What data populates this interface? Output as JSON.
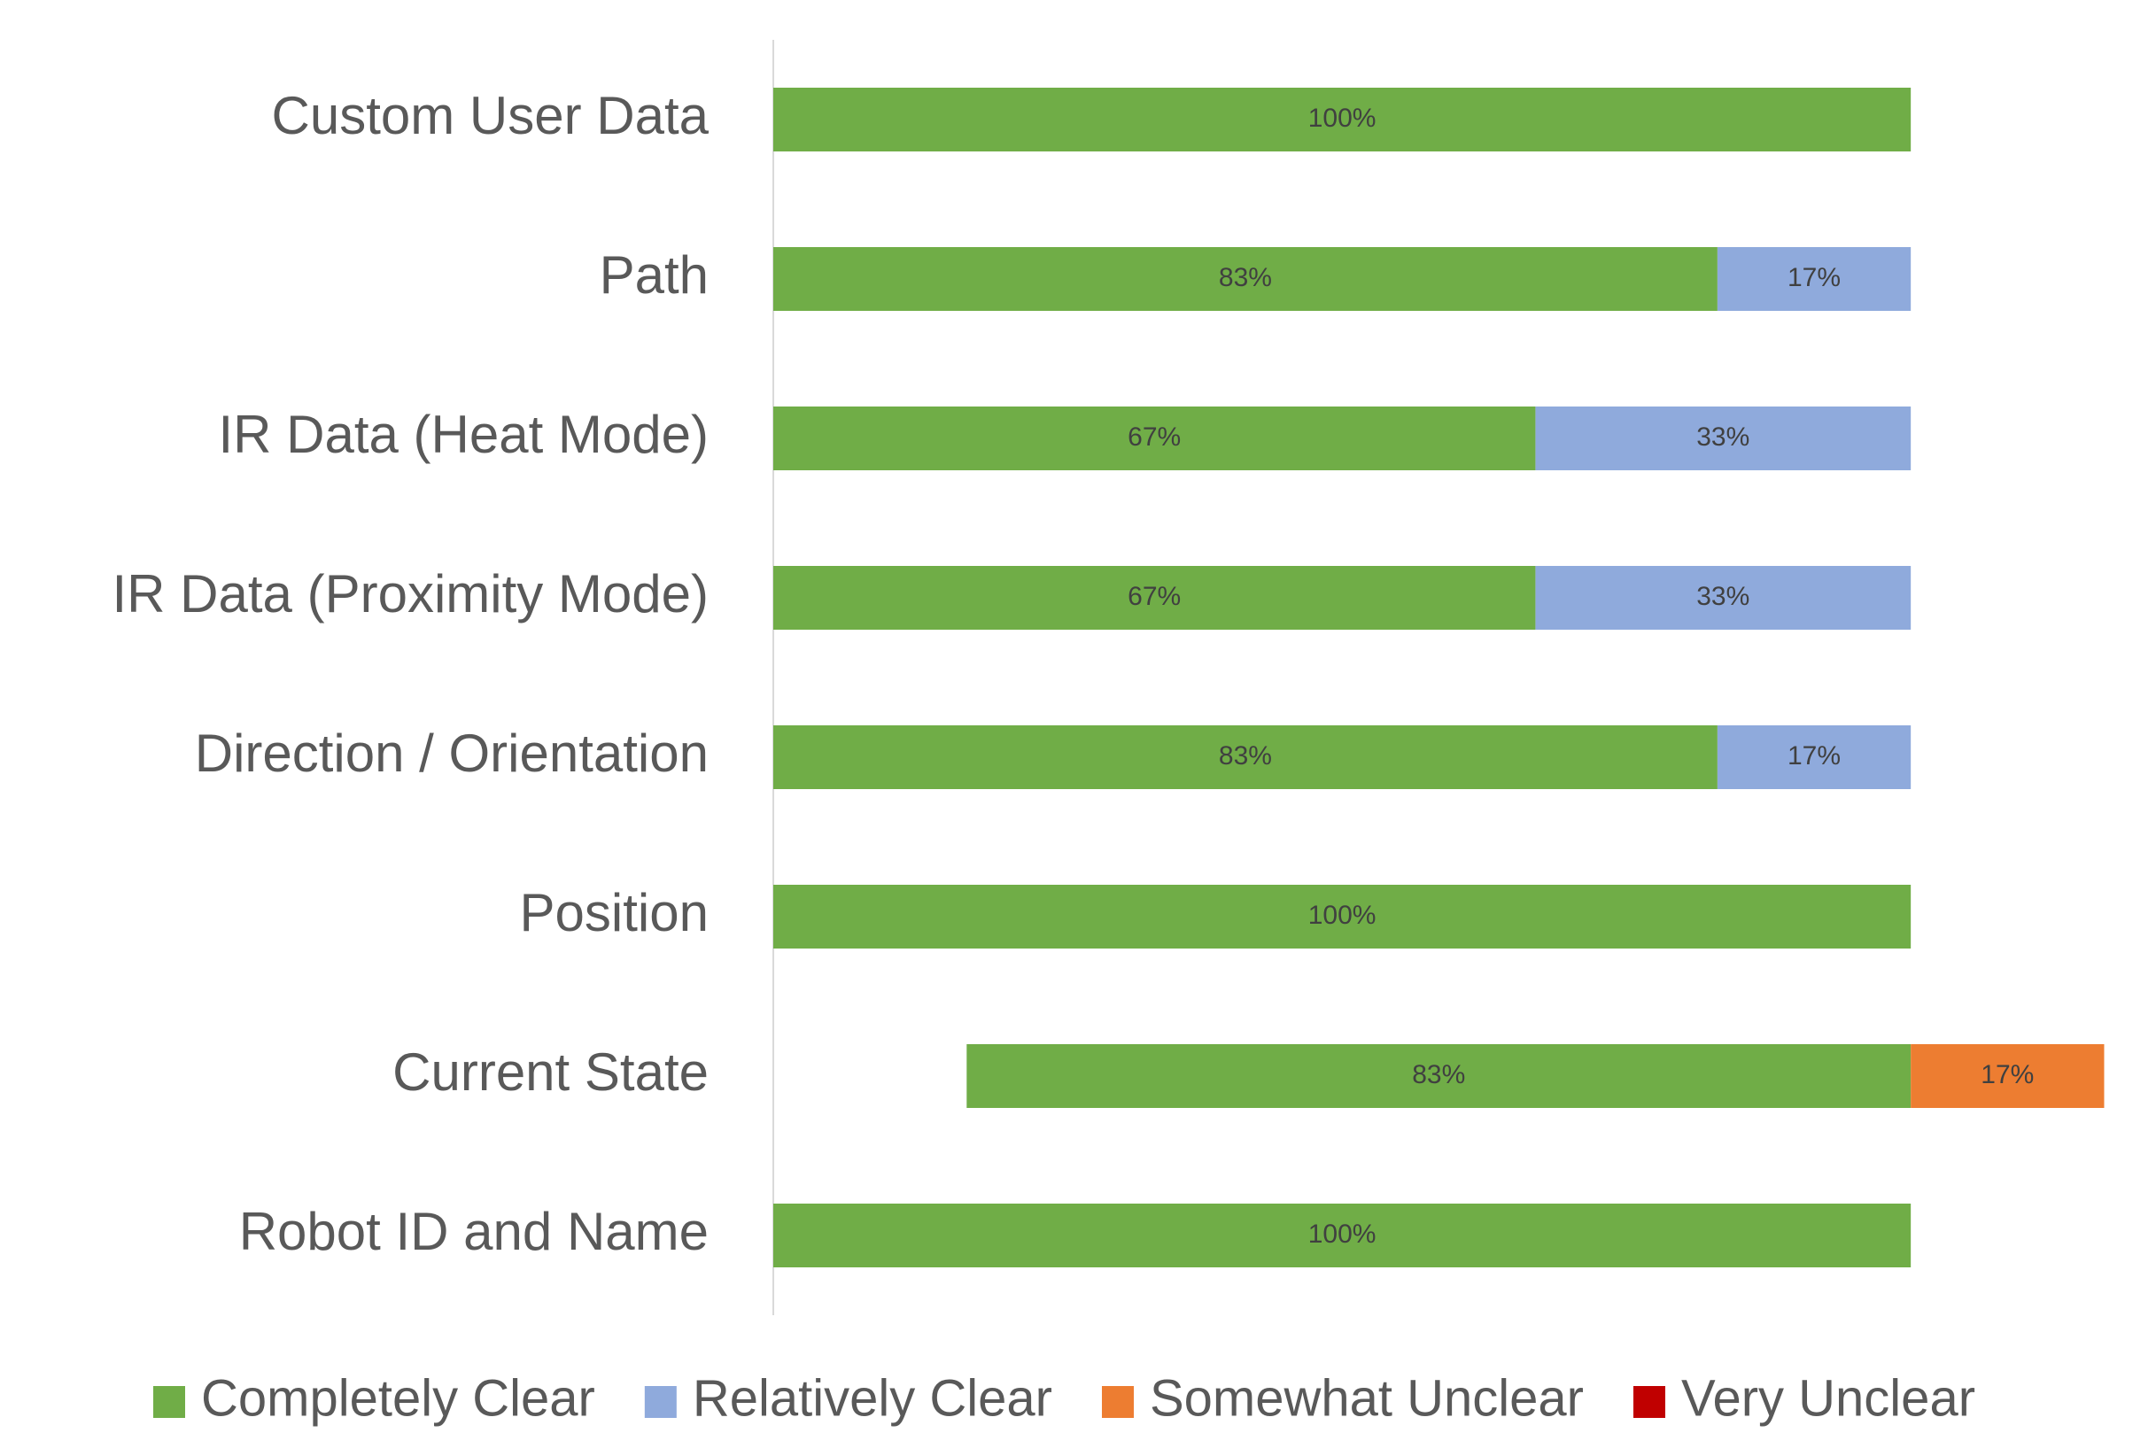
{
  "chart_data": {
    "type": "diverging-bar",
    "categories": [
      "Custom User Data",
      "Path",
      "IR Data (Heat Mode)",
      "IR Data (Proximity Mode)",
      "Direction / Orientation",
      "Position",
      "Current State",
      "Robot ID and Name"
    ],
    "series": [
      {
        "name": "Completely Clear",
        "color": "#70ad47",
        "values": [
          100,
          83,
          67,
          67,
          83,
          100,
          83,
          100
        ],
        "value_labels": [
          "100%",
          "83%",
          "67%",
          "67%",
          "83%",
          "100%",
          "83%",
          "100%"
        ]
      },
      {
        "name": "Relatively Clear",
        "color": "#8faadc",
        "values": [
          null,
          17,
          33,
          33,
          17,
          null,
          null,
          null
        ],
        "value_labels": [
          null,
          "17%",
          "33%",
          "33%",
          "17%",
          null,
          null,
          null
        ]
      },
      {
        "name": "Somewhat Unclear",
        "color": "#ed7d31",
        "values": [
          null,
          null,
          null,
          null,
          null,
          null,
          17,
          null
        ],
        "value_labels": [
          null,
          null,
          null,
          null,
          null,
          null,
          "17%",
          null
        ]
      },
      {
        "name": "Very Unclear",
        "color": "#c00000",
        "values": [
          null,
          null,
          null,
          null,
          null,
          null,
          null,
          null
        ],
        "value_labels": [
          null,
          null,
          null,
          null,
          null,
          null,
          null,
          null
        ]
      }
    ],
    "xlim": [
      -100,
      20
    ],
    "legend": "bottom"
  }
}
